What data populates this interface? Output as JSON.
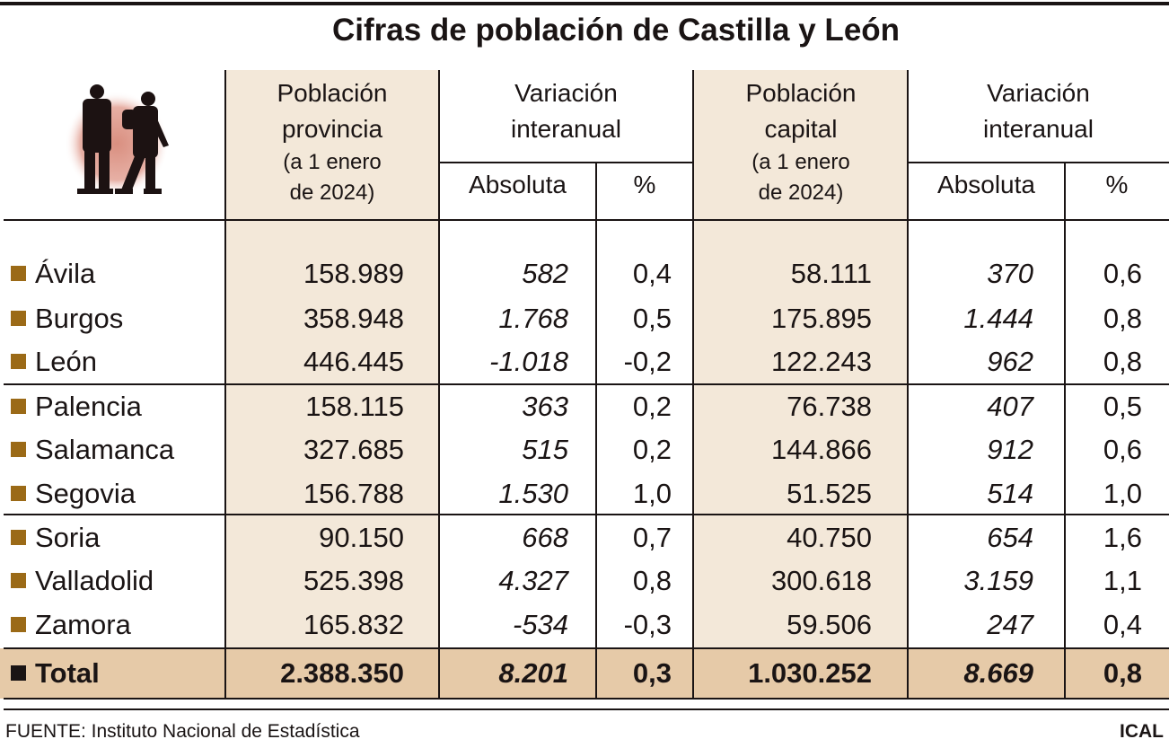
{
  "title": "Cifras de población de Castilla y León",
  "colors": {
    "column_highlight": "#f3e8d9",
    "total_band": "#e6caa8",
    "bullet": "#9b6a17"
  },
  "icon": "people-silhouette-icon",
  "headers": {
    "pop_provincia": [
      "Población",
      "provincia"
    ],
    "pop_provincia_note": [
      "(a 1 enero",
      "de 2024)"
    ],
    "variacion_1": [
      "Variación",
      "interanual"
    ],
    "pop_capital": [
      "Población",
      "capital"
    ],
    "pop_capital_note": [
      "(a 1 enero",
      "de 2024)"
    ],
    "variacion_2": [
      "Variación",
      "interanual"
    ],
    "absoluta": "Absoluta",
    "pct": "%"
  },
  "chart_data": {
    "type": "table",
    "title": "Cifras de población de Castilla y León",
    "columns": [
      "Población provincia (a 1 enero de 2024)",
      "Variación interanual Absoluta",
      "Variación interanual %",
      "Población capital (a 1 enero de 2024)",
      "Variación interanual Absoluta",
      "Variación interanual %"
    ],
    "rows": [
      {
        "name": "Ávila",
        "values": [
          "158.989",
          "582",
          "0,4",
          "58.111",
          "370",
          "0,6"
        ]
      },
      {
        "name": "Burgos",
        "values": [
          "358.948",
          "1.768",
          "0,5",
          "175.895",
          "1.444",
          "0,8"
        ]
      },
      {
        "name": "León",
        "values": [
          "446.445",
          "-1.018",
          "-0,2",
          "122.243",
          "962",
          "0,8"
        ]
      },
      {
        "name": "Palencia",
        "values": [
          "158.115",
          "363",
          "0,2",
          "76.738",
          "407",
          "0,5"
        ]
      },
      {
        "name": "Salamanca",
        "values": [
          "327.685",
          "515",
          "0,2",
          "144.866",
          "912",
          "0,6"
        ]
      },
      {
        "name": "Segovia",
        "values": [
          "156.788",
          "1.530",
          "1,0",
          "51.525",
          "514",
          "1,0"
        ]
      },
      {
        "name": "Soria",
        "values": [
          "90.150",
          "668",
          "0,7",
          "40.750",
          "654",
          "1,6"
        ]
      },
      {
        "name": "Valladolid",
        "values": [
          "525.398",
          "4.327",
          "0,8",
          "300.618",
          "3.159",
          "1,1"
        ]
      },
      {
        "name": "Zamora",
        "values": [
          "165.832",
          "-534",
          "-0,3",
          "59.506",
          "247",
          "0,4"
        ]
      }
    ],
    "total": {
      "name": "Total",
      "values": [
        "2.388.350",
        "8.201",
        "0,3",
        "1.030.252",
        "8.669",
        "0,8"
      ]
    }
  },
  "footer": "FUENTE: Instituto Nacional de Estadística",
  "credit": "ICAL"
}
